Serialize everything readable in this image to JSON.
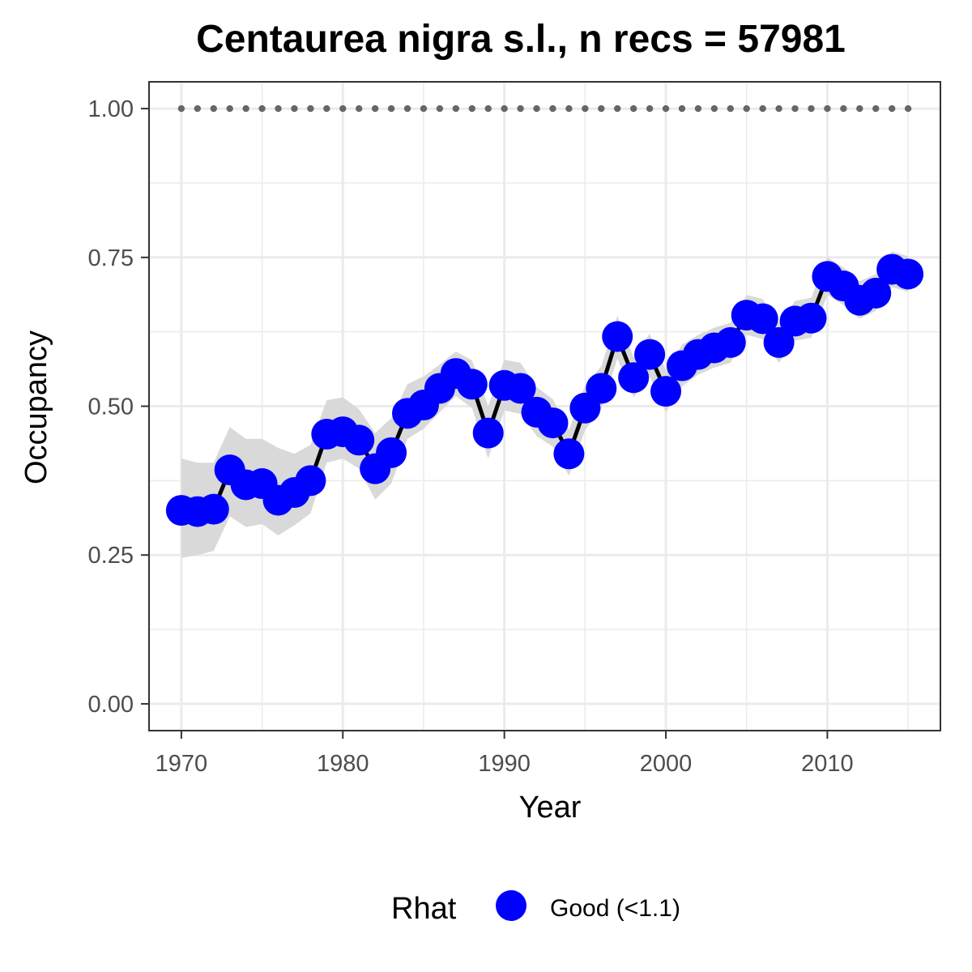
{
  "chart_data": {
    "type": "line",
    "title": "Centaurea nigra s.l., n recs = 57981",
    "xlabel": "Year",
    "ylabel": "Occupancy",
    "xlim": [
      1968,
      2017
    ],
    "ylim": [
      -0.045,
      1.045
    ],
    "x_ticks": [
      1970,
      1980,
      1990,
      2000,
      2010
    ],
    "x_tick_labels": [
      "1970",
      "1980",
      "1990",
      "2000",
      "2010"
    ],
    "y_ticks": [
      0,
      0.25,
      0.5,
      0.75,
      1
    ],
    "y_tick_labels": [
      "0.00",
      "0.25",
      "0.50",
      "0.75",
      "1.00"
    ],
    "grid": true,
    "series": [
      {
        "name": "Occupancy",
        "x": [
          1970,
          1971,
          1972,
          1973,
          1974,
          1975,
          1976,
          1977,
          1978,
          1979,
          1980,
          1981,
          1982,
          1983,
          1984,
          1985,
          1986,
          1987,
          1988,
          1989,
          1990,
          1991,
          1992,
          1993,
          1994,
          1995,
          1996,
          1997,
          1998,
          1999,
          2000,
          2001,
          2002,
          2003,
          2004,
          2005,
          2006,
          2007,
          2008,
          2009,
          2010,
          2011,
          2012,
          2013,
          2014,
          2015
        ],
        "values": [
          0.325,
          0.323,
          0.327,
          0.393,
          0.368,
          0.37,
          0.342,
          0.355,
          0.375,
          0.453,
          0.457,
          0.443,
          0.395,
          0.422,
          0.488,
          0.502,
          0.53,
          0.555,
          0.537,
          0.455,
          0.535,
          0.53,
          0.49,
          0.472,
          0.42,
          0.497,
          0.53,
          0.617,
          0.548,
          0.587,
          0.525,
          0.568,
          0.587,
          0.598,
          0.607,
          0.653,
          0.647,
          0.607,
          0.643,
          0.648,
          0.718,
          0.702,
          0.678,
          0.69,
          0.73,
          0.722
        ],
        "lower": [
          0.245,
          0.25,
          0.257,
          0.315,
          0.297,
          0.302,
          0.283,
          0.3,
          0.32,
          0.405,
          0.412,
          0.395,
          0.343,
          0.37,
          0.445,
          0.462,
          0.49,
          0.517,
          0.497,
          0.412,
          0.493,
          0.487,
          0.45,
          0.432,
          0.383,
          0.46,
          0.495,
          0.58,
          0.515,
          0.55,
          0.49,
          0.533,
          0.553,
          0.565,
          0.573,
          0.62,
          0.613,
          0.573,
          0.61,
          0.615,
          0.687,
          0.67,
          0.647,
          0.66,
          0.7,
          0.692
        ],
        "upper": [
          0.412,
          0.405,
          0.405,
          0.465,
          0.445,
          0.445,
          0.43,
          0.42,
          0.435,
          0.51,
          0.515,
          0.495,
          0.455,
          0.48,
          0.537,
          0.55,
          0.57,
          0.592,
          0.577,
          0.5,
          0.578,
          0.573,
          0.532,
          0.512,
          0.46,
          0.535,
          0.567,
          0.652,
          0.582,
          0.622,
          0.56,
          0.603,
          0.62,
          0.632,
          0.64,
          0.687,
          0.68,
          0.64,
          0.677,
          0.682,
          0.75,
          0.733,
          0.71,
          0.722,
          0.76,
          0.752
        ]
      },
      {
        "name": "Reference",
        "x": [
          1970,
          1971,
          1972,
          1973,
          1974,
          1975,
          1976,
          1977,
          1978,
          1979,
          1980,
          1981,
          1982,
          1983,
          1984,
          1985,
          1986,
          1987,
          1988,
          1989,
          1990,
          1991,
          1992,
          1993,
          1994,
          1995,
          1996,
          1997,
          1998,
          1999,
          2000,
          2001,
          2002,
          2003,
          2004,
          2005,
          2006,
          2007,
          2008,
          2009,
          2010,
          2011,
          2012,
          2013,
          2014,
          2015
        ],
        "values": [
          1,
          1,
          1,
          1,
          1,
          1,
          1,
          1,
          1,
          1,
          1,
          1,
          1,
          1,
          1,
          1,
          1,
          1,
          1,
          1,
          1,
          1,
          1,
          1,
          1,
          1,
          1,
          1,
          1,
          1,
          1,
          1,
          1,
          1,
          1,
          1,
          1,
          1,
          1,
          1,
          1,
          1,
          1,
          1,
          1,
          1
        ]
      }
    ],
    "legend": {
      "title": "Rhat",
      "position": "bottom",
      "entries": [
        {
          "label": "Good (<1.1)",
          "color": "#0000ff"
        }
      ]
    },
    "colors": {
      "points": "#0000ff",
      "line": "#000000",
      "ribbon": "#d9d9d9",
      "reference_dots": "#666666",
      "grid": "#ebebeb",
      "panel_border": "#333333"
    }
  }
}
